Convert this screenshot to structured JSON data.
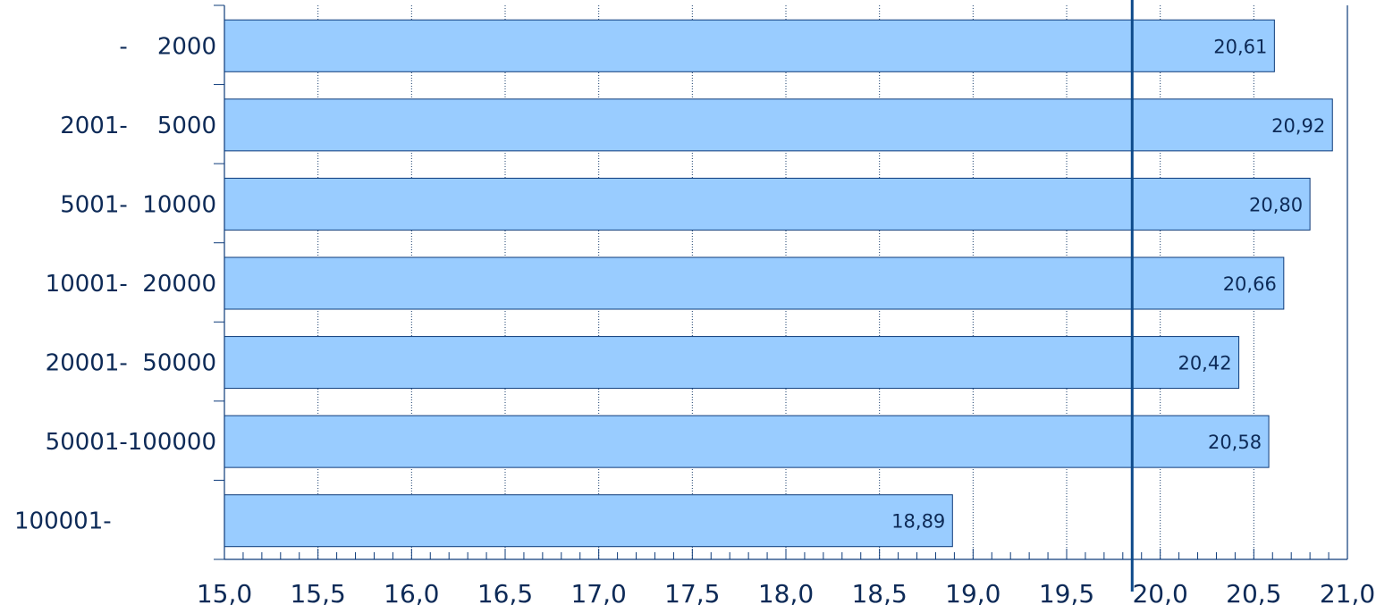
{
  "chart_data": {
    "type": "bar",
    "orientation": "horizontal",
    "categories": [
      "-    2000",
      "2001-    5000",
      "5001-  10000",
      "10001-  20000",
      "20001-  50000",
      "50001-100000",
      "100001-"
    ],
    "values": [
      20.61,
      20.92,
      20.8,
      20.66,
      20.42,
      20.58,
      18.89
    ],
    "value_labels": [
      "20,61",
      "20,92",
      "20,80",
      "20,66",
      "20,42",
      "20,58",
      "18,89"
    ],
    "xlim": [
      15.0,
      21.0
    ],
    "x_ticks": [
      "15,0",
      "15,5",
      "16,0",
      "16,5",
      "17,0",
      "17,5",
      "18,0",
      "18,5",
      "19,0",
      "19,5",
      "20,0",
      "20,5",
      "21,0"
    ],
    "reference_line": 19.85,
    "grid": true,
    "title": "",
    "xlabel": "",
    "ylabel": "",
    "colors": {
      "bar_fill": "#99ccff",
      "bar_stroke": "#0d3b7a",
      "axis": "#0d3b7a",
      "grid": "#1a3f6e",
      "text": "#0d2a57",
      "reference_line": "#0d4a8a"
    }
  }
}
